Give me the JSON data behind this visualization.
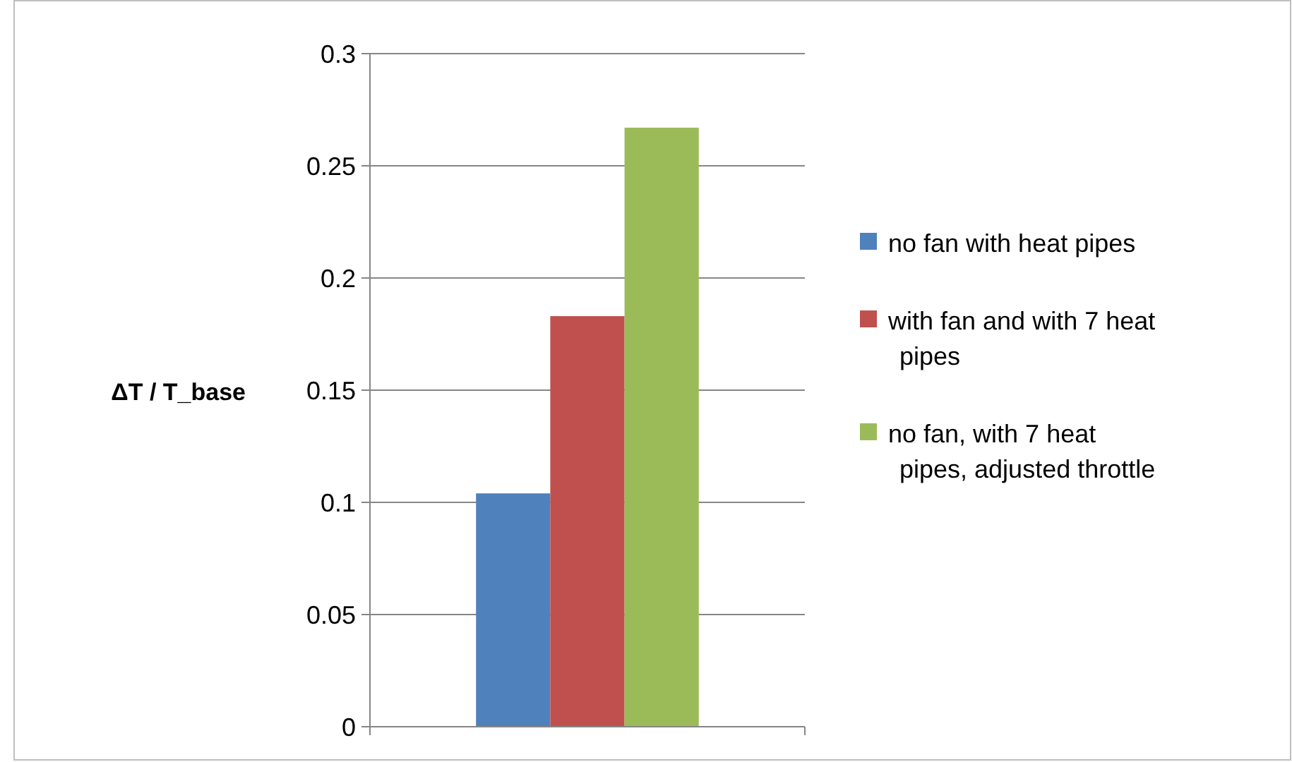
{
  "chart_data": {
    "type": "bar",
    "ylabel": "ΔT / T_base",
    "categories": [
      null
    ],
    "series": [
      {
        "name": "no fan with heat pipes",
        "color": "#4f81bd",
        "values": [
          0.104
        ]
      },
      {
        "name": "with fan and with 7 heat pipes",
        "color": "#c0504d",
        "values": [
          0.183
        ]
      },
      {
        "name": "no fan, with 7 heat pipes, adjusted throttle",
        "color": "#9bbb59",
        "values": [
          0.267
        ]
      }
    ],
    "ylim": [
      0,
      0.3
    ],
    "yticks": [
      0,
      0.05,
      0.1,
      0.15,
      0.2,
      0.25,
      0.3
    ],
    "grid": "y",
    "legend": "right"
  }
}
